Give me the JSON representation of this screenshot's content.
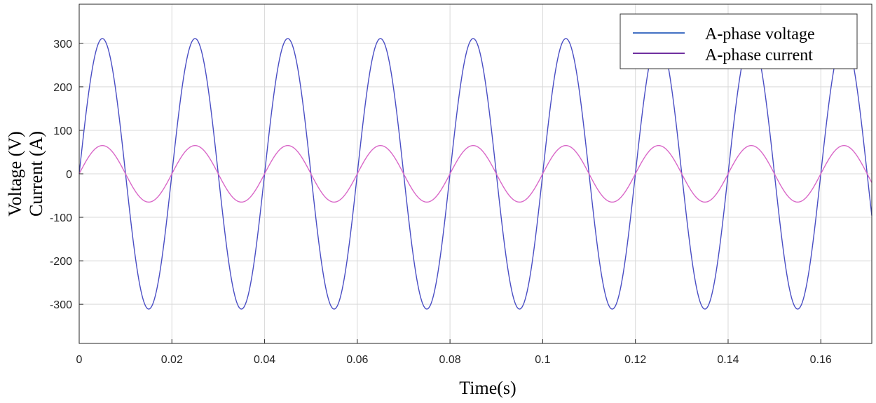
{
  "chart_data": {
    "type": "line",
    "xlabel": "Time(s)",
    "ylabel": [
      "Voltage (V)",
      "Current (A)"
    ],
    "xlim": [
      0,
      0.171
    ],
    "ylim": [
      -390,
      390
    ],
    "x_ticks": [
      0,
      0.02,
      0.04,
      0.06,
      0.08,
      0.1,
      0.12,
      0.14,
      0.16
    ],
    "x_tick_labels": [
      "0",
      "0.02",
      "0.04",
      "0.06",
      "0.08",
      "0.1",
      "0.12",
      "0.14",
      "0.16"
    ],
    "y_ticks": [
      -300,
      -200,
      -100,
      0,
      100,
      200,
      300
    ],
    "y_tick_labels": [
      "-300",
      "-200",
      "-100",
      "0",
      "100",
      "200",
      "300"
    ],
    "grid": true,
    "legend_position": "top-right",
    "series": [
      {
        "name": "A-phase voltage",
        "color": "#4a4ec4",
        "waveform": "sine",
        "amplitude": 311,
        "frequency_hz": 50,
        "phase_deg": 0,
        "t_start": 0,
        "t_end": 0.171
      },
      {
        "name": "A-phase current",
        "color": "#d968c8",
        "waveform": "sine",
        "amplitude": 65,
        "frequency_hz": 50,
        "phase_deg": 0,
        "t_start": 0,
        "t_end": 0.171
      }
    ],
    "legend_colors": [
      "#4472c4",
      "#7030a0"
    ]
  }
}
